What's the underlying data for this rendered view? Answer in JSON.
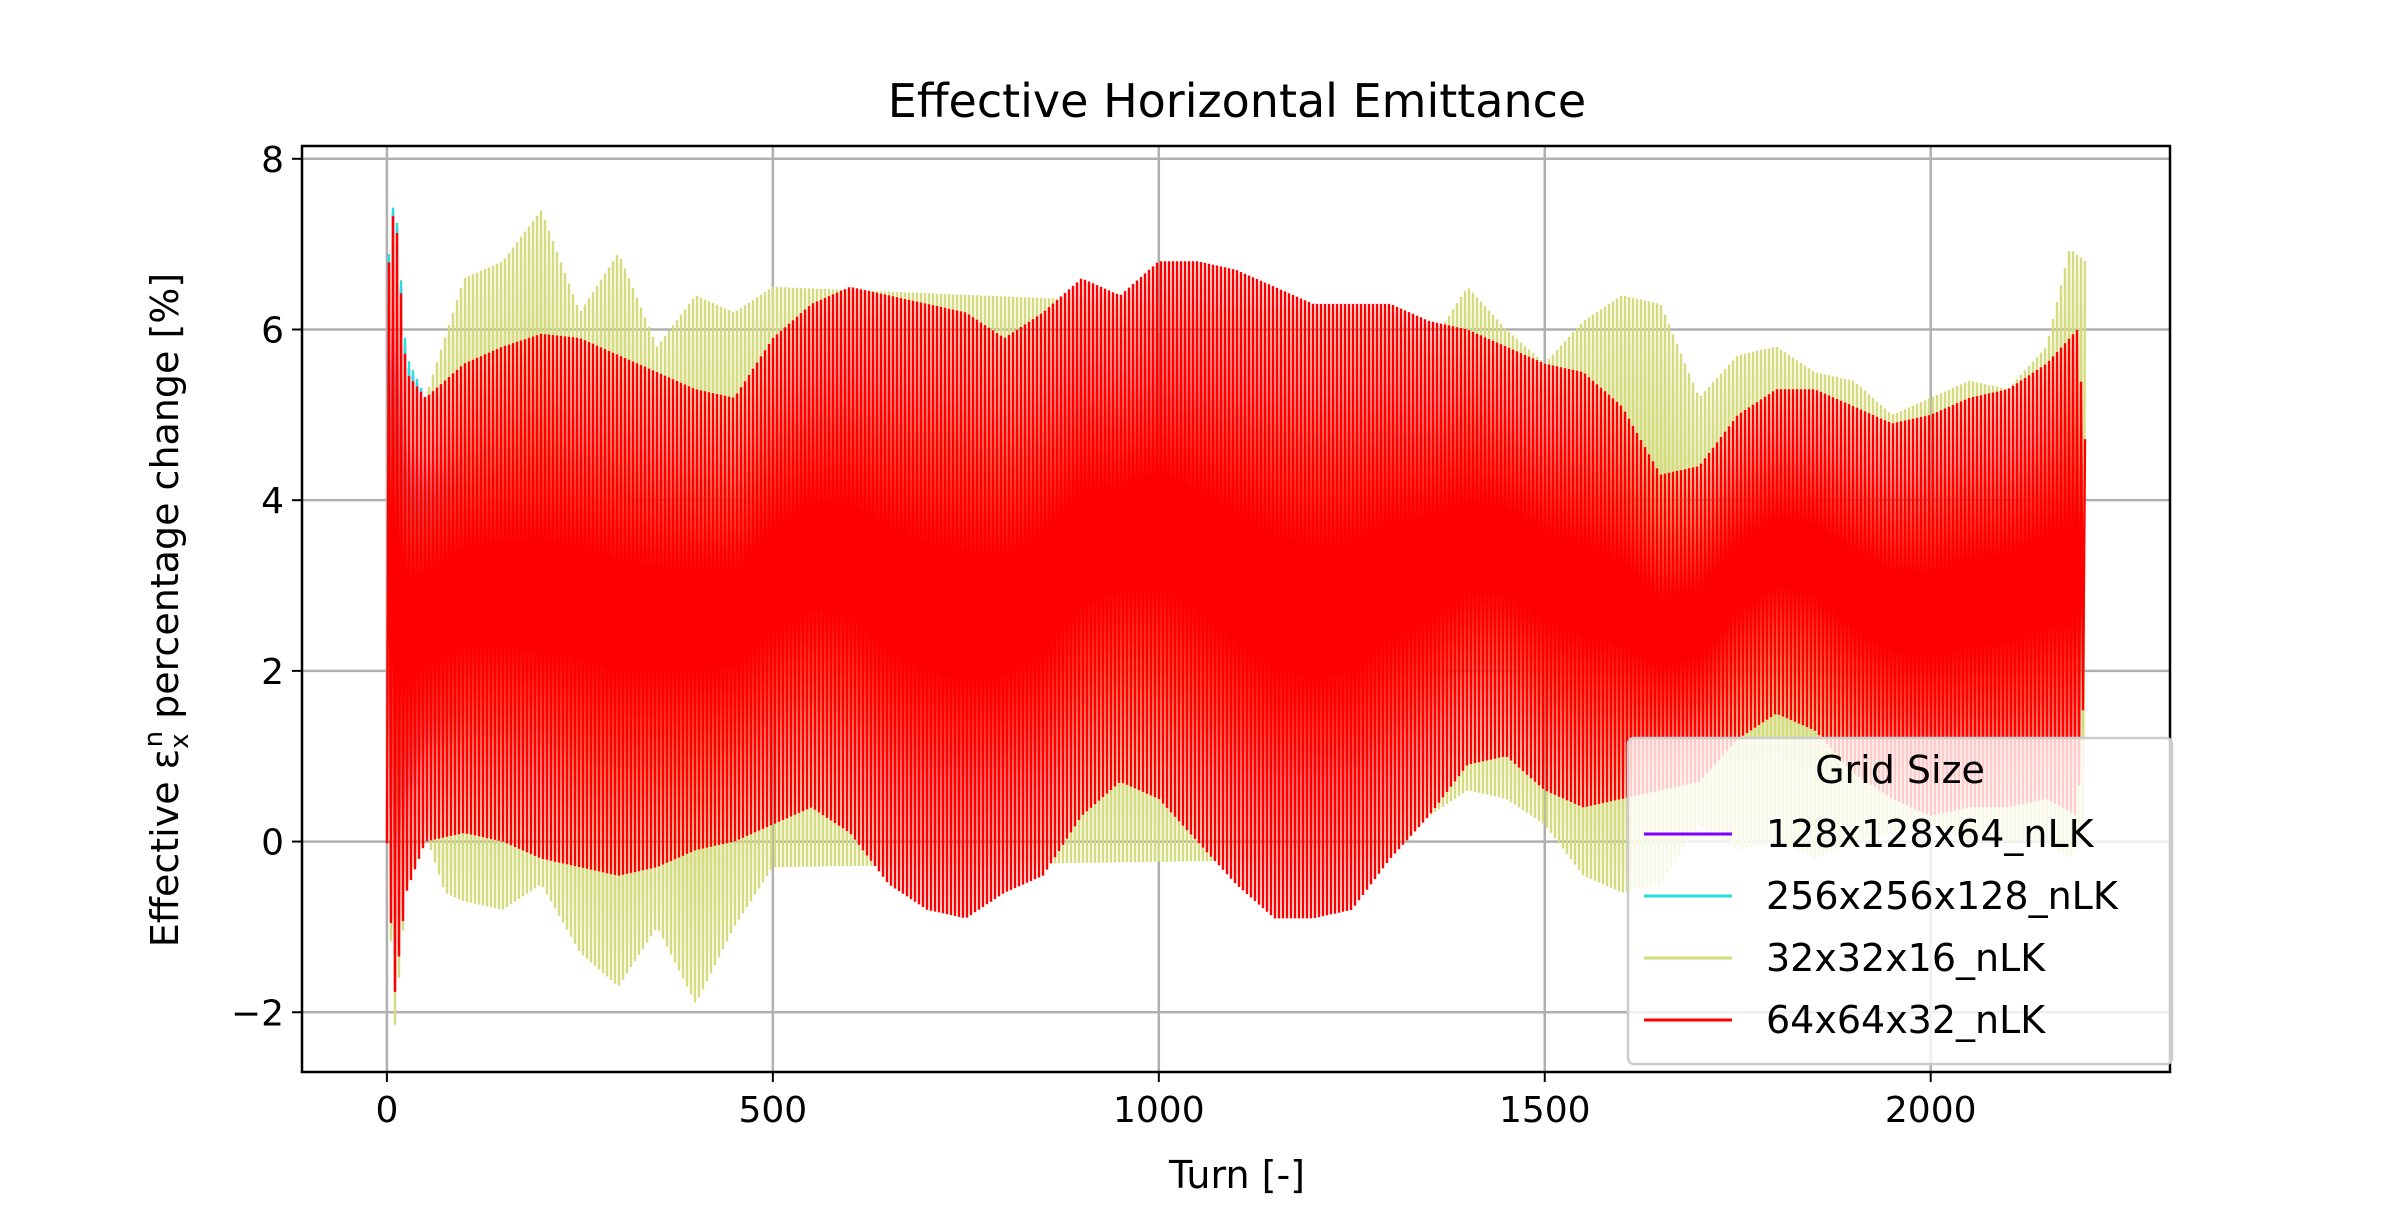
{
  "chart_data": {
    "type": "line",
    "title": "Effective Horizontal Emittance",
    "xlabel": "Turn [-]",
    "ylabel": "Effective εₓⁿ percentage change [%]",
    "ylabel_parts": {
      "prefix": "Effective ε",
      "subscript": "x",
      "superscript": "n",
      "suffix": " percentage change [%]"
    },
    "xlim": [
      -110,
      2310
    ],
    "ylim": [
      -2.7,
      8.15
    ],
    "xticks": [
      0,
      500,
      1000,
      1500,
      2000
    ],
    "yticks": [
      -2,
      0,
      2,
      4,
      6,
      8
    ],
    "xtick_labels": [
      "0",
      "500",
      "1000",
      "1500",
      "2000"
    ],
    "ytick_labels": [
      "−2",
      "0",
      "2",
      "4",
      "6",
      "8"
    ],
    "grid": true,
    "legend": {
      "title": "Grid Size",
      "placement": "lower right"
    },
    "turns": 2200,
    "series": [
      {
        "name": "128x128x64_nLK",
        "color": "#7f00ff",
        "envelope": {
          "x": [
            0,
            10,
            25,
            50,
            100
          ],
          "upper": [
            6.5,
            7.6,
            5.6,
            5.2,
            5.3
          ],
          "lower": [
            0.0,
            -1.7,
            -0.5,
            0.3,
            0.4
          ]
        }
      },
      {
        "name": "256x256x128_nLK",
        "color": "#2adddd",
        "envelope": {
          "x": [
            0,
            10,
            25,
            50,
            100
          ],
          "upper": [
            6.6,
            7.65,
            5.7,
            5.2,
            5.3
          ],
          "lower": [
            0.0,
            -1.7,
            -0.5,
            0.3,
            0.4
          ]
        }
      },
      {
        "name": "32x32x16_nLK",
        "color": "#d4dc7f",
        "envelope": {
          "x": [
            0,
            10,
            25,
            50,
            75,
            100,
            150,
            200,
            250,
            300,
            350,
            400,
            450,
            500,
            1300,
            1350,
            1400,
            1450,
            1500,
            1550,
            1600,
            1650,
            1700,
            1750,
            1800,
            1850,
            1900,
            1950,
            2000,
            2050,
            2100,
            2150,
            2180,
            2200
          ],
          "upper": [
            6.3,
            7.5,
            5.5,
            5.2,
            5.9,
            6.6,
            6.8,
            7.4,
            6.2,
            6.9,
            5.8,
            6.4,
            6.2,
            6.5,
            6.2,
            5.8,
            6.5,
            6.0,
            5.6,
            6.1,
            6.4,
            6.3,
            5.2,
            5.7,
            5.8,
            5.5,
            5.4,
            5.0,
            5.2,
            5.4,
            5.3,
            5.8,
            6.95,
            6.8
          ],
          "lower": [
            0.0,
            -2.2,
            -0.6,
            0.1,
            -0.6,
            -0.7,
            -0.8,
            -0.5,
            -1.3,
            -1.7,
            -1.0,
            -1.9,
            -1.0,
            -0.3,
            -0.2,
            0.3,
            0.6,
            0.5,
            0.2,
            -0.4,
            -0.6,
            -0.5,
            0.2,
            -0.1,
            0.0,
            -0.2,
            0.0,
            0.1,
            0.2,
            0.0,
            0.0,
            0.0,
            -0.2,
            0.1
          ]
        }
      },
      {
        "name": "64x64x32_nLK",
        "color": "#ff0000",
        "envelope": {
          "x": [
            0,
            10,
            25,
            50,
            100,
            150,
            200,
            250,
            300,
            350,
            400,
            450,
            500,
            550,
            600,
            650,
            700,
            750,
            800,
            850,
            900,
            950,
            1000,
            1050,
            1100,
            1150,
            1200,
            1250,
            1300,
            1350,
            1400,
            1450,
            1500,
            1550,
            1600,
            1650,
            1700,
            1750,
            1800,
            1850,
            1900,
            1950,
            2000,
            2050,
            2100,
            2150,
            2190,
            2200
          ],
          "upper": [
            6.5,
            7.55,
            5.5,
            5.2,
            5.6,
            5.8,
            5.95,
            5.9,
            5.7,
            5.5,
            5.3,
            5.2,
            5.9,
            6.3,
            6.5,
            6.4,
            6.3,
            6.2,
            5.9,
            6.2,
            6.6,
            6.4,
            6.8,
            6.8,
            6.7,
            6.5,
            6.3,
            6.3,
            6.3,
            6.1,
            6.0,
            5.8,
            5.6,
            5.5,
            5.1,
            4.3,
            4.4,
            5.0,
            5.3,
            5.3,
            5.1,
            4.9,
            5.0,
            5.2,
            5.3,
            5.6,
            6.0,
            4.7
          ],
          "lower": [
            0.0,
            -1.8,
            -0.6,
            0.0,
            0.1,
            0.0,
            -0.2,
            -0.3,
            -0.4,
            -0.3,
            -0.1,
            0.0,
            0.2,
            0.4,
            0.1,
            -0.5,
            -0.8,
            -0.9,
            -0.6,
            -0.4,
            0.3,
            0.7,
            0.5,
            0.0,
            -0.5,
            -0.9,
            -0.9,
            -0.8,
            -0.2,
            0.3,
            0.9,
            1.0,
            0.6,
            0.4,
            0.5,
            0.6,
            0.7,
            1.2,
            1.5,
            1.3,
            0.8,
            0.5,
            0.3,
            0.4,
            0.4,
            0.5,
            0.3,
            2.0
          ]
        }
      }
    ]
  }
}
